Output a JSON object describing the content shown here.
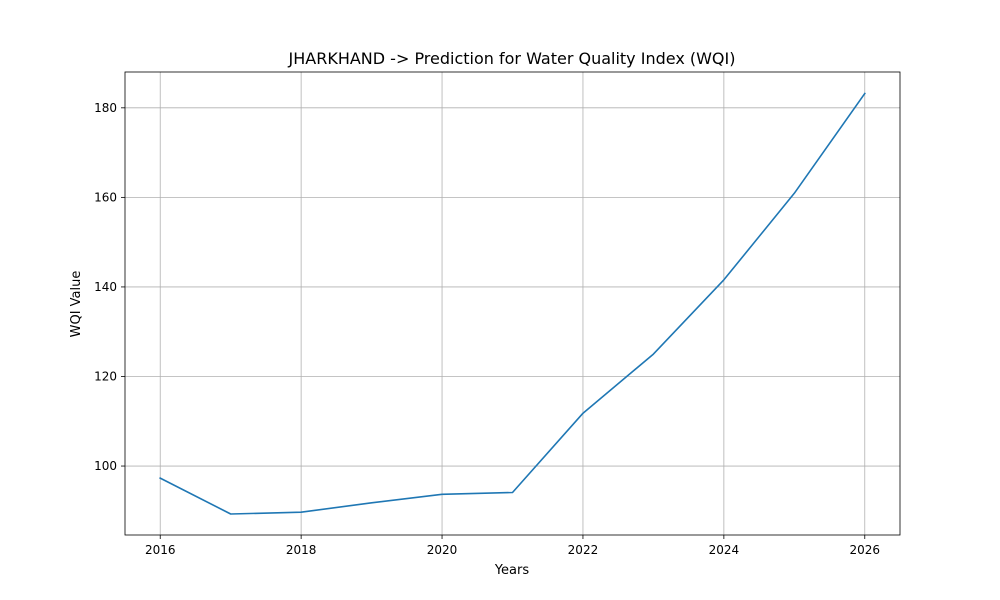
{
  "chart_data": {
    "type": "line",
    "title": "JHARKHAND -> Prediction for Water Quality Index (WQI)",
    "xlabel": "Years",
    "ylabel": "WQI Value",
    "x": [
      2016,
      2017,
      2018,
      2019,
      2020,
      2021,
      2022,
      2023,
      2024,
      2025,
      2026
    ],
    "series": [
      {
        "values": [
          97.3,
          89.3,
          89.7,
          91.8,
          93.7,
          94.1,
          111.8,
          125.0,
          141.6,
          160.9,
          183.2
        ]
      }
    ],
    "xlim": [
      2015.5,
      2026.5
    ],
    "ylim": [
      84.6,
      188.0
    ],
    "x_ticks": [
      2016,
      2018,
      2020,
      2022,
      2024,
      2026
    ],
    "y_ticks": [
      100,
      120,
      140,
      160,
      180
    ],
    "grid": true,
    "line_color": "#1f77b4"
  }
}
